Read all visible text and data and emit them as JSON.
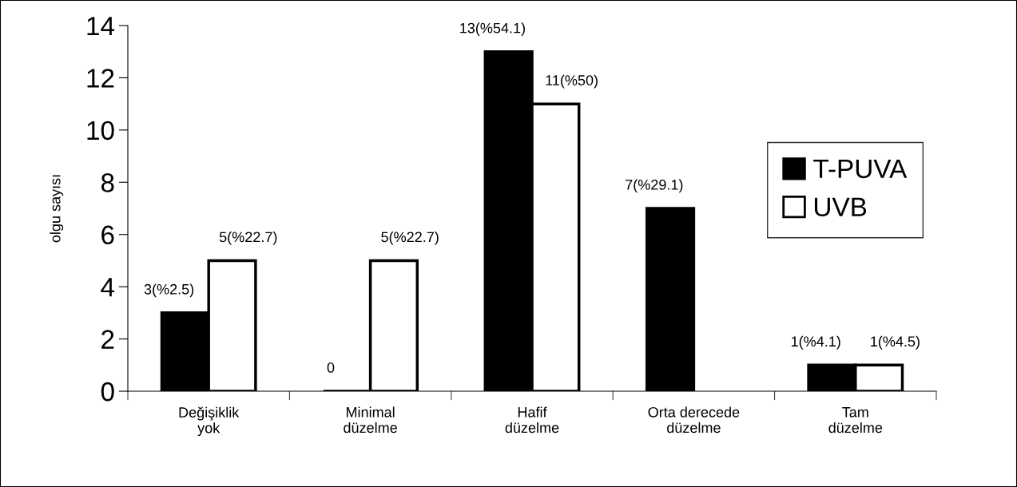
{
  "chart_data": {
    "type": "bar",
    "ylabel": "olgu sayısı",
    "categories": [
      "Değişiklik\nyok",
      "Minimal\ndüzelme",
      "Hafif\ndüzelme",
      "Orta derecede\ndüzelme",
      "Tam\ndüzelme"
    ],
    "series": [
      {
        "name": "T-PUVA",
        "color": "#000000",
        "values": [
          3,
          0,
          13,
          7,
          1
        ],
        "value_labels": [
          "3(%2.5)",
          "0",
          "13(%54.1)",
          "7(%29.1)",
          "1(%4.1)"
        ]
      },
      {
        "name": "UVB",
        "color": "#ffffff",
        "values": [
          5,
          5,
          11,
          null,
          1
        ],
        "value_labels": [
          "5(%22.7)",
          "5(%22.7)",
          "11(%50)",
          null,
          "1(%4.5)"
        ]
      }
    ],
    "ylim": [
      0,
      14
    ],
    "yticks": [
      0,
      2,
      4,
      6,
      8,
      10,
      12,
      14
    ],
    "grid": false,
    "legend": "right"
  }
}
